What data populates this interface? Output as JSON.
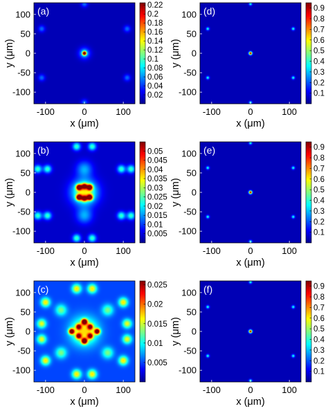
{
  "chart_data": [
    {
      "type": "heatmap",
      "panel_label": "(a)",
      "xlabel": "x (μm)",
      "ylabel": "y (μm)",
      "xlim": [
        -130,
        130
      ],
      "ylim": [
        -130,
        130
      ],
      "xticks": [
        -100,
        0,
        100
      ],
      "xtick_labels": [
        "-100",
        "0",
        "100"
      ],
      "yticks": [
        100,
        50,
        0,
        -50,
        -100
      ],
      "ytick_labels": [
        "100",
        "50",
        "0",
        "-50",
        "-100"
      ],
      "colorscale": "jet",
      "colorbar": {
        "range": [
          0,
          0.225
        ],
        "ticks": [
          0.22,
          0.2,
          0.18,
          0.16,
          0.14,
          0.12,
          0.1,
          0.08,
          0.06,
          0.04,
          0.02
        ],
        "labels": [
          "0.22",
          "0.2",
          "0.18",
          "0.16",
          "0.14",
          "0.12",
          "0.1",
          "0.08",
          "0.06",
          "0.04",
          "0.02"
        ]
      },
      "background": 0.012,
      "spots": [
        {
          "x": 0,
          "y": 0,
          "value": 0.22,
          "sigma": 3.5
        },
        {
          "x": 0,
          "y": 127,
          "value": 0.04,
          "sigma": 6
        },
        {
          "x": 0,
          "y": -127,
          "value": 0.04,
          "sigma": 6
        },
        {
          "x": 110,
          "y": 63,
          "value": 0.04,
          "sigma": 6
        },
        {
          "x": -110,
          "y": 63,
          "value": 0.04,
          "sigma": 6
        },
        {
          "x": 110,
          "y": -63,
          "value": 0.04,
          "sigma": 6
        },
        {
          "x": -110,
          "y": -63,
          "value": 0.04,
          "sigma": 6
        },
        {
          "x": 0,
          "y": 0,
          "value": 0.06,
          "sigma": 10
        }
      ]
    },
    {
      "type": "heatmap",
      "panel_label": "(d)",
      "xlabel": "x (μm)",
      "ylabel": "y (μm)",
      "xlim": [
        -130,
        130
      ],
      "ylim": [
        -130,
        130
      ],
      "xticks": [
        -100,
        0,
        100
      ],
      "xtick_labels": [
        "-100",
        "0",
        "100"
      ],
      "yticks": [
        100,
        50,
        0,
        -50,
        -100
      ],
      "ytick_labels": [
        "100",
        "50",
        "0",
        "-50",
        "-100"
      ],
      "colorscale": "jet",
      "colorbar": {
        "range": [
          0,
          0.95
        ],
        "ticks": [
          0.9,
          0.8,
          0.7,
          0.6,
          0.5,
          0.4,
          0.3,
          0.2,
          0.1
        ],
        "labels": [
          "0.9",
          "0.8",
          "0.7",
          "0.6",
          "0.5",
          "0.4",
          "0.3",
          "0.2",
          "0.1"
        ]
      },
      "background": 0.05,
      "spots": [
        {
          "x": 0,
          "y": 0,
          "value": 0.95,
          "sigma": 2.8
        },
        {
          "x": 0,
          "y": 127,
          "value": 0.35,
          "sigma": 2.8
        },
        {
          "x": 0,
          "y": -127,
          "value": 0.35,
          "sigma": 2.8
        },
        {
          "x": 110,
          "y": 63,
          "value": 0.35,
          "sigma": 2.8
        },
        {
          "x": -110,
          "y": 63,
          "value": 0.35,
          "sigma": 2.8
        },
        {
          "x": 110,
          "y": -63,
          "value": 0.35,
          "sigma": 2.8
        },
        {
          "x": -110,
          "y": -63,
          "value": 0.35,
          "sigma": 2.8
        }
      ]
    },
    {
      "type": "heatmap",
      "panel_label": "(b)",
      "xlabel": "x (μm)",
      "ylabel": "y (μm)",
      "xlim": [
        -130,
        130
      ],
      "ylim": [
        -130,
        130
      ],
      "xticks": [
        -100,
        0,
        100
      ],
      "xtick_labels": [
        "-100",
        "0",
        "100"
      ],
      "yticks": [
        100,
        50,
        0,
        -50,
        -100
      ],
      "ytick_labels": [
        "100",
        "50",
        "0",
        "-50",
        "-100"
      ],
      "colorscale": "jet",
      "colorbar": {
        "range": [
          0,
          0.055
        ],
        "ticks": [
          0.05,
          0.045,
          0.04,
          0.035,
          0.03,
          0.025,
          0.02,
          0.015,
          0.01,
          0.005
        ],
        "labels": [
          "0.05",
          "0.045",
          "0.04",
          "0.035",
          "0.03",
          "0.025",
          "0.02",
          "0.015",
          "0.01",
          "0.005"
        ]
      },
      "background": 0.004,
      "spots": [
        {
          "x": -14,
          "y": 13,
          "value": 0.052,
          "sigma": 5
        },
        {
          "x": 14,
          "y": 13,
          "value": 0.052,
          "sigma": 5
        },
        {
          "x": -14,
          "y": -13,
          "value": 0.052,
          "sigma": 5
        },
        {
          "x": 14,
          "y": -13,
          "value": 0.052,
          "sigma": 5
        },
        {
          "x": 0,
          "y": 16,
          "value": 0.04,
          "sigma": 5
        },
        {
          "x": 0,
          "y": -16,
          "value": 0.04,
          "sigma": 5
        },
        {
          "x": 0,
          "y": 0,
          "value": 0.03,
          "sigma": 22
        },
        {
          "x": -120,
          "y": 60,
          "value": 0.02,
          "sigma": 7
        },
        {
          "x": -95,
          "y": 60,
          "value": 0.02,
          "sigma": 7
        },
        {
          "x": 120,
          "y": 60,
          "value": 0.02,
          "sigma": 7
        },
        {
          "x": 95,
          "y": 60,
          "value": 0.02,
          "sigma": 7
        },
        {
          "x": -120,
          "y": -60,
          "value": 0.02,
          "sigma": 7
        },
        {
          "x": -95,
          "y": -60,
          "value": 0.02,
          "sigma": 7
        },
        {
          "x": 120,
          "y": -60,
          "value": 0.02,
          "sigma": 7
        },
        {
          "x": 95,
          "y": -60,
          "value": 0.02,
          "sigma": 7
        },
        {
          "x": -20,
          "y": 118,
          "value": 0.02,
          "sigma": 7
        },
        {
          "x": 20,
          "y": 118,
          "value": 0.02,
          "sigma": 7
        },
        {
          "x": -20,
          "y": -118,
          "value": 0.02,
          "sigma": 7
        },
        {
          "x": 20,
          "y": -118,
          "value": 0.02,
          "sigma": 7
        },
        {
          "x": 0,
          "y": 60,
          "value": 0.012,
          "sigma": 14
        },
        {
          "x": 0,
          "y": -60,
          "value": 0.012,
          "sigma": 14
        }
      ]
    },
    {
      "type": "heatmap",
      "panel_label": "(e)",
      "xlabel": "x (μm)",
      "ylabel": "y (μm)",
      "xlim": [
        -130,
        130
      ],
      "ylim": [
        -130,
        130
      ],
      "xticks": [
        -100,
        0,
        100
      ],
      "xtick_labels": [
        "-100",
        "0",
        "100"
      ],
      "yticks": [
        100,
        50,
        0,
        -50,
        -100
      ],
      "ytick_labels": [
        "100",
        "50",
        "0",
        "-50",
        "-100"
      ],
      "colorscale": "jet",
      "colorbar": {
        "range": [
          0,
          0.95
        ],
        "ticks": [
          0.9,
          0.8,
          0.7,
          0.6,
          0.5,
          0.4,
          0.3,
          0.2,
          0.1
        ],
        "labels": [
          "0.9",
          "0.8",
          "0.7",
          "0.6",
          "0.5",
          "0.4",
          "0.3",
          "0.2",
          "0.1"
        ]
      },
      "background": 0.05,
      "spots": [
        {
          "x": 0,
          "y": 0,
          "value": 0.95,
          "sigma": 2.8
        },
        {
          "x": 0,
          "y": 127,
          "value": 0.35,
          "sigma": 2.8
        },
        {
          "x": 0,
          "y": -127,
          "value": 0.35,
          "sigma": 2.8
        },
        {
          "x": 110,
          "y": 63,
          "value": 0.35,
          "sigma": 2.8
        },
        {
          "x": -110,
          "y": 63,
          "value": 0.35,
          "sigma": 2.8
        },
        {
          "x": 110,
          "y": -63,
          "value": 0.35,
          "sigma": 2.8
        },
        {
          "x": -110,
          "y": -63,
          "value": 0.35,
          "sigma": 2.8
        }
      ]
    },
    {
      "type": "heatmap",
      "panel_label": "(c)",
      "xlabel": "x (μm)",
      "ylabel": "y (μm)",
      "xlim": [
        -130,
        130
      ],
      "ylim": [
        -130,
        130
      ],
      "xticks": [
        -100,
        0,
        100
      ],
      "xtick_labels": [
        "-100",
        "0",
        "100"
      ],
      "yticks": [
        100,
        50,
        0,
        -50,
        -100
      ],
      "ytick_labels": [
        "100",
        "50",
        "0",
        "-50",
        "-100"
      ],
      "colorscale": "jet",
      "colorbar": {
        "range": [
          0,
          0.026
        ],
        "ticks": [
          0.025,
          0.02,
          0.015,
          0.01,
          0.005
        ],
        "labels": [
          "0.025",
          "0.02",
          "0.015",
          "0.01",
          "0.005"
        ]
      },
      "background": 0.005,
      "spots": [
        {
          "x": 0,
          "y": 0,
          "value": 0.012,
          "sigma": 24
        },
        {
          "x": 0,
          "y": 25,
          "value": 0.025,
          "sigma": 5
        },
        {
          "x": 0,
          "y": -25,
          "value": 0.025,
          "sigma": 5
        },
        {
          "x": -33,
          "y": 0,
          "value": 0.024,
          "sigma": 5
        },
        {
          "x": 33,
          "y": 0,
          "value": 0.024,
          "sigma": 5
        },
        {
          "x": -15,
          "y": 12,
          "value": 0.017,
          "sigma": 5
        },
        {
          "x": 15,
          "y": 12,
          "value": 0.017,
          "sigma": 5
        },
        {
          "x": -15,
          "y": -12,
          "value": 0.017,
          "sigma": 5
        },
        {
          "x": 15,
          "y": -12,
          "value": 0.017,
          "sigma": 5
        },
        {
          "x": -100,
          "y": 75,
          "value": 0.012,
          "sigma": 8
        },
        {
          "x": 100,
          "y": 75,
          "value": 0.012,
          "sigma": 8
        },
        {
          "x": -100,
          "y": -75,
          "value": 0.012,
          "sigma": 8
        },
        {
          "x": 100,
          "y": -75,
          "value": 0.012,
          "sigma": 8
        },
        {
          "x": -110,
          "y": 20,
          "value": 0.011,
          "sigma": 8
        },
        {
          "x": 110,
          "y": 20,
          "value": 0.011,
          "sigma": 8
        },
        {
          "x": -110,
          "y": -20,
          "value": 0.011,
          "sigma": 8
        },
        {
          "x": 110,
          "y": -20,
          "value": 0.011,
          "sigma": 8
        },
        {
          "x": -20,
          "y": 110,
          "value": 0.012,
          "sigma": 8
        },
        {
          "x": 20,
          "y": 110,
          "value": 0.012,
          "sigma": 8
        },
        {
          "x": -20,
          "y": -110,
          "value": 0.012,
          "sigma": 8
        },
        {
          "x": 20,
          "y": -110,
          "value": 0.012,
          "sigma": 8
        },
        {
          "x": -60,
          "y": 55,
          "value": 0.008,
          "sigma": 10
        },
        {
          "x": 60,
          "y": 55,
          "value": 0.008,
          "sigma": 10
        },
        {
          "x": -60,
          "y": -55,
          "value": 0.008,
          "sigma": 10
        },
        {
          "x": 60,
          "y": -55,
          "value": 0.008,
          "sigma": 10
        }
      ]
    },
    {
      "type": "heatmap",
      "panel_label": "(f)",
      "xlabel": "x (μm)",
      "ylabel": "y (μm)",
      "xlim": [
        -130,
        130
      ],
      "ylim": [
        -130,
        130
      ],
      "xticks": [
        -100,
        0,
        100
      ],
      "xtick_labels": [
        "-100",
        "0",
        "100"
      ],
      "yticks": [
        100,
        50,
        0,
        -50,
        -100
      ],
      "ytick_labels": [
        "100",
        "50",
        "0",
        "-50",
        "-100"
      ],
      "colorscale": "jet",
      "colorbar": {
        "range": [
          0,
          0.95
        ],
        "ticks": [
          0.9,
          0.8,
          0.7,
          0.6,
          0.5,
          0.4,
          0.3,
          0.2,
          0.1
        ],
        "labels": [
          "0.9",
          "0.8",
          "0.7",
          "0.6",
          "0.5",
          "0.4",
          "0.3",
          "0.2",
          "0.1"
        ]
      },
      "background": 0.05,
      "spots": [
        {
          "x": 0,
          "y": 0,
          "value": 0.95,
          "sigma": 2.8
        },
        {
          "x": 0,
          "y": 127,
          "value": 0.35,
          "sigma": 2.8
        },
        {
          "x": 0,
          "y": -127,
          "value": 0.35,
          "sigma": 2.8
        },
        {
          "x": 110,
          "y": 63,
          "value": 0.35,
          "sigma": 2.8
        },
        {
          "x": -110,
          "y": 63,
          "value": 0.35,
          "sigma": 2.8
        },
        {
          "x": 110,
          "y": -63,
          "value": 0.35,
          "sigma": 2.8
        },
        {
          "x": -110,
          "y": -63,
          "value": 0.35,
          "sigma": 2.8
        }
      ]
    }
  ]
}
